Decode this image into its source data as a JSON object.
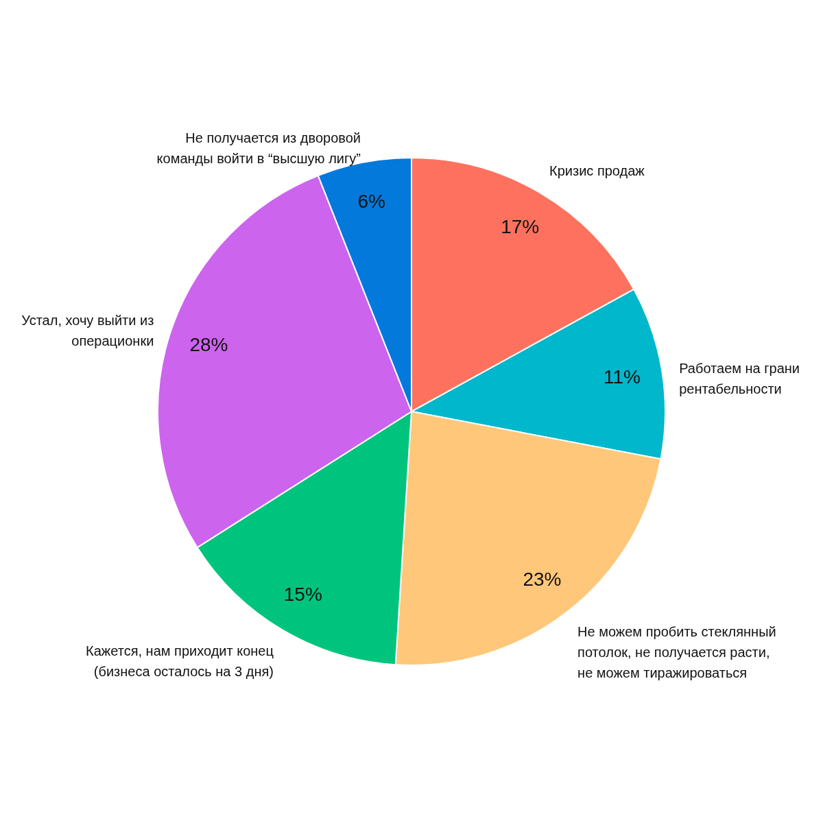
{
  "chart_data": {
    "type": "pie",
    "categories": [
      "Кризис продаж",
      "Работаем на грани рентабельности",
      "Не можем пробить стеклянный потолок, не получается расти, не можем тиражироваться",
      "Кажется, нам приходит конец (бизнеса осталось на 3 дня)",
      "Устал, хочу выйти из операционки",
      "Не получается из дворовой команды войти в “высшую лигу”"
    ],
    "values": [
      17,
      11,
      23,
      15,
      28,
      6
    ],
    "colors": [
      "#fe715e",
      "#00b7cb",
      "#fec77a",
      "#00c47e",
      "#cc64ee",
      "#0379db"
    ],
    "value_labels": [
      "17%",
      "11%",
      "23%",
      "15%",
      "28%",
      "6%"
    ]
  }
}
